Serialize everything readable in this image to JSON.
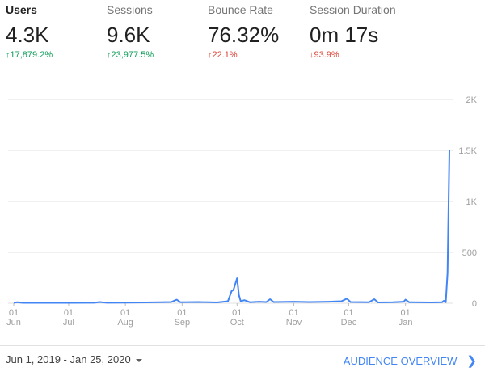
{
  "metrics": [
    {
      "label": "Users",
      "value": "4.3K",
      "change": "17,879.2%",
      "direction": "up",
      "color": "#0f9d58",
      "active": true
    },
    {
      "label": "Sessions",
      "value": "9.6K",
      "change": "23,977.5%",
      "direction": "up",
      "color": "#0f9d58",
      "active": false
    },
    {
      "label": "Bounce Rate",
      "value": "76.32%",
      "change": "22.1%",
      "direction": "up",
      "color": "#db4437",
      "active": false
    },
    {
      "label": "Session Duration",
      "value": "0m 17s",
      "change": "93.9%",
      "direction": "down",
      "color": "#db4437",
      "active": false
    }
  ],
  "chart_data": {
    "type": "line",
    "series_color": "#4285f4",
    "ylim": [
      0,
      2000
    ],
    "y_ticks": [
      "0",
      "500",
      "1K",
      "1.5K",
      "2K"
    ],
    "y_tick_values": [
      0,
      500,
      1000,
      1500,
      2000
    ],
    "x_ticks": [
      {
        "day": "01",
        "month": "Jun",
        "date": "2019-06-01"
      },
      {
        "day": "01",
        "month": "Jul",
        "date": "2019-07-01"
      },
      {
        "day": "01",
        "month": "Aug",
        "date": "2019-08-01"
      },
      {
        "day": "01",
        "month": "Sep",
        "date": "2019-09-01"
      },
      {
        "day": "01",
        "month": "Oct",
        "date": "2019-10-01"
      },
      {
        "day": "01",
        "month": "Nov",
        "date": "2019-11-01"
      },
      {
        "day": "01",
        "month": "Dec",
        "date": "2019-12-01"
      },
      {
        "day": "01",
        "month": "Jan",
        "date": "2020-01-01"
      }
    ],
    "xlim": [
      "2019-06-01",
      "2020-01-25"
    ],
    "grid": true,
    "points": [
      [
        "2019-06-01",
        5
      ],
      [
        "2019-06-03",
        10
      ],
      [
        "2019-06-06",
        4
      ],
      [
        "2019-07-01",
        4
      ],
      [
        "2019-07-15",
        5
      ],
      [
        "2019-07-18",
        12
      ],
      [
        "2019-07-22",
        5
      ],
      [
        "2019-08-01",
        6
      ],
      [
        "2019-08-12",
        8
      ],
      [
        "2019-08-20",
        10
      ],
      [
        "2019-08-26",
        12
      ],
      [
        "2019-08-29",
        35
      ],
      [
        "2019-08-31",
        10
      ],
      [
        "2019-09-10",
        12
      ],
      [
        "2019-09-20",
        8
      ],
      [
        "2019-09-26",
        20
      ],
      [
        "2019-09-28",
        120
      ],
      [
        "2019-09-29",
        130
      ],
      [
        "2019-10-01",
        245
      ],
      [
        "2019-10-02",
        80
      ],
      [
        "2019-10-03",
        20
      ],
      [
        "2019-10-05",
        30
      ],
      [
        "2019-10-08",
        10
      ],
      [
        "2019-10-13",
        15
      ],
      [
        "2019-10-17",
        12
      ],
      [
        "2019-10-19",
        40
      ],
      [
        "2019-10-21",
        12
      ],
      [
        "2019-11-01",
        15
      ],
      [
        "2019-11-10",
        12
      ],
      [
        "2019-11-20",
        15
      ],
      [
        "2019-11-27",
        20
      ],
      [
        "2019-11-30",
        45
      ],
      [
        "2019-12-02",
        12
      ],
      [
        "2019-12-12",
        10
      ],
      [
        "2019-12-15",
        40
      ],
      [
        "2019-12-17",
        8
      ],
      [
        "2019-12-25",
        10
      ],
      [
        "2019-12-31",
        15
      ],
      [
        "2020-01-01",
        35
      ],
      [
        "2020-01-03",
        10
      ],
      [
        "2020-01-15",
        8
      ],
      [
        "2020-01-21",
        10
      ],
      [
        "2020-01-22",
        25
      ],
      [
        "2020-01-23",
        10
      ],
      [
        "2020-01-24",
        300
      ],
      [
        "2020-01-25",
        1500
      ]
    ]
  },
  "footer": {
    "date_range": "Jun 1, 2019 - Jan 25, 2020",
    "link": "AUDIENCE OVERVIEW"
  }
}
